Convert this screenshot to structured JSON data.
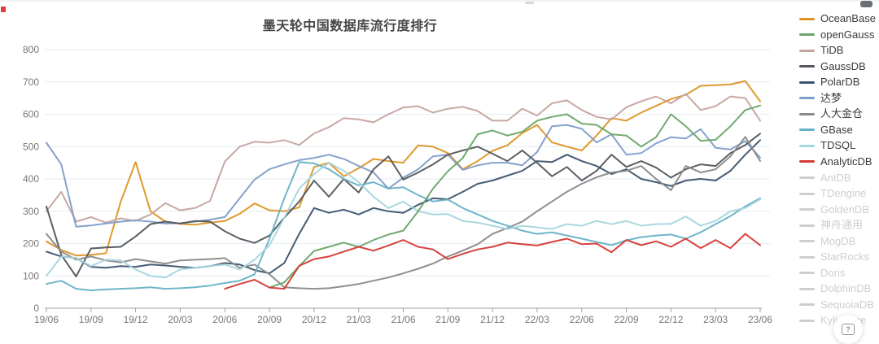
{
  "title": "墨天轮中国数据库流行度排行",
  "help_button": {
    "glyph": "?"
  },
  "legend": {
    "active_text_color": "#3a3a3a",
    "inactive_color": "#cdced1",
    "items": [
      {
        "label": "OceanBase",
        "color": "#dd9322",
        "active": true
      },
      {
        "label": "openGauss",
        "color": "#69a567",
        "active": true
      },
      {
        "label": "TiDB",
        "color": "#c4a49e",
        "active": true
      },
      {
        "label": "GaussDB",
        "color": "#53575c",
        "active": true
      },
      {
        "label": "PolarDB",
        "color": "#3c536d",
        "active": true
      },
      {
        "label": "达梦",
        "color": "#7e9dc8",
        "active": true
      },
      {
        "label": "人大金仓",
        "color": "#898989",
        "active": true
      },
      {
        "label": "GBase",
        "color": "#67b1c7",
        "active": true
      },
      {
        "label": "TDSQL",
        "color": "#a5d5de",
        "active": true
      },
      {
        "label": "AnalyticDB",
        "color": "#d43833",
        "active": true
      },
      {
        "label": "AntDB",
        "color": "#cdced1",
        "active": false
      },
      {
        "label": "TDengine",
        "color": "#cdced1",
        "active": false
      },
      {
        "label": "GoldenDB",
        "color": "#cdced1",
        "active": false
      },
      {
        "label": "神舟通用",
        "color": "#cdced1",
        "active": false
      },
      {
        "label": "MogDB",
        "color": "#cdced1",
        "active": false
      },
      {
        "label": "StarRocks",
        "color": "#cdced1",
        "active": false
      },
      {
        "label": "Doris",
        "color": "#cdced1",
        "active": false
      },
      {
        "label": "DolphinDB",
        "color": "#cdced1",
        "active": false
      },
      {
        "label": "SequoiaDB",
        "color": "#cdced1",
        "active": false
      },
      {
        "label": "Kyligence",
        "color": "#cdced1",
        "active": false
      }
    ]
  },
  "chart_data": {
    "type": "line",
    "title": "墨天轮中国数据库流行度排行",
    "xlabel": "",
    "ylabel": "",
    "ylim": [
      0,
      800
    ],
    "y_ticks": [
      0,
      100,
      200,
      300,
      400,
      500,
      600,
      700,
      800
    ],
    "grid": "horizontal-only",
    "legend_position": "right",
    "x_tick_labels": [
      "19/06",
      "19/09",
      "19/12",
      "20/03",
      "20/06",
      "20/09",
      "20/12",
      "21/03",
      "21/06",
      "21/09",
      "21/12",
      "22/03",
      "22/06",
      "22/09",
      "22/12",
      "23/03",
      "23/06"
    ],
    "months_per_tick": 3,
    "total_points": 49,
    "axis_color": "#a0a0a0",
    "grid_color": "#e4ecf4",
    "tick_text_color": "#767676",
    "series": [
      {
        "name": "OceanBase",
        "color": "#dd9322",
        "start_index": 0,
        "values": [
          207,
          180,
          163,
          165,
          170,
          330,
          452,
          300,
          268,
          261,
          258,
          265,
          270,
          292,
          324,
          303,
          300,
          312,
          437,
          450,
          408,
          433,
          462,
          455,
          450,
          504,
          500,
          480,
          430,
          455,
          487,
          504,
          542,
          567,
          513,
          500,
          488,
          534,
          588,
          580,
          605,
          626,
          647,
          660,
          688,
          690,
          692,
          703,
          640
        ]
      },
      {
        "name": "TiDB",
        "color": "#c4a49e",
        "start_index": 0,
        "values": [
          300,
          360,
          268,
          282,
          265,
          278,
          270,
          290,
          325,
          303,
          310,
          332,
          454,
          500,
          515,
          512,
          520,
          505,
          541,
          560,
          588,
          584,
          575,
          600,
          621,
          625,
          605,
          617,
          623,
          610,
          580,
          580,
          617,
          596,
          634,
          643,
          613,
          592,
          584,
          622,
          640,
          655,
          634,
          663,
          613,
          625,
          655,
          650,
          580
        ]
      },
      {
        "name": "达梦",
        "color": "#7e9dc8",
        "start_index": 0,
        "values": [
          512,
          445,
          252,
          256,
          262,
          268,
          272,
          268,
          262,
          263,
          268,
          274,
          282,
          340,
          398,
          430,
          445,
          458,
          465,
          475,
          462,
          440,
          420,
          370,
          404,
          430,
          470,
          475,
          428,
          442,
          450,
          450,
          442,
          483,
          563,
          567,
          555,
          513,
          538,
          475,
          480,
          510,
          529,
          525,
          554,
          496,
          491,
          517,
          466
        ]
      },
      {
        "name": "GaussDB",
        "color": "#53575c",
        "start_index": 0,
        "values": [
          315,
          165,
          98,
          185,
          188,
          190,
          222,
          260,
          268,
          262,
          270,
          268,
          238,
          215,
          202,
          225,
          280,
          330,
          395,
          345,
          400,
          358,
          430,
          470,
          398,
          420,
          445,
          475,
          488,
          500,
          478,
          455,
          488,
          450,
          408,
          437,
          395,
          425,
          475,
          437,
          455,
          435,
          404,
          430,
          445,
          440,
          480,
          505,
          540
        ]
      },
      {
        "name": "PolarDB",
        "color": "#3c536d",
        "start_index": 0,
        "values": [
          175,
          160,
          155,
          128,
          125,
          130,
          128,
          135,
          132,
          128,
          125,
          130,
          140,
          135,
          118,
          108,
          140,
          230,
          310,
          295,
          305,
          290,
          310,
          300,
          295,
          320,
          340,
          337,
          360,
          385,
          395,
          410,
          425,
          455,
          452,
          475,
          455,
          440,
          415,
          430,
          400,
          390,
          378,
          395,
          400,
          395,
          425,
          475,
          520
        ]
      },
      {
        "name": "人大金仓",
        "color": "#898989",
        "start_index": 0,
        "values": [
          230,
          175,
          150,
          160,
          148,
          142,
          152,
          145,
          138,
          148,
          150,
          152,
          155,
          125,
          135,
          105,
          65,
          62,
          60,
          62,
          68,
          75,
          85,
          95,
          108,
          122,
          138,
          160,
          178,
          198,
          230,
          248,
          268,
          300,
          330,
          360,
          385,
          405,
          420,
          425,
          440,
          400,
          365,
          440,
          420,
          430,
          470,
          530,
          455
        ]
      },
      {
        "name": "GBase",
        "color": "#67b1c7",
        "start_index": 0,
        "values": [
          75,
          85,
          60,
          55,
          58,
          60,
          62,
          65,
          60,
          62,
          65,
          70,
          78,
          85,
          105,
          215,
          340,
          452,
          448,
          430,
          400,
          380,
          390,
          370,
          374,
          350,
          330,
          336,
          310,
          290,
          270,
          255,
          240,
          230,
          235,
          225,
          215,
          205,
          195,
          210,
          220,
          225,
          228,
          215,
          235,
          260,
          285,
          315,
          340
        ]
      },
      {
        "name": "TDSQL",
        "color": "#a5d5de",
        "start_index": 0,
        "values": [
          100,
          160,
          155,
          130,
          150,
          148,
          120,
          100,
          95,
          120,
          125,
          130,
          135,
          120,
          150,
          195,
          280,
          370,
          415,
          450,
          425,
          390,
          345,
          310,
          330,
          300,
          290,
          291,
          270,
          265,
          255,
          245,
          255,
          250,
          245,
          260,
          255,
          270,
          260,
          270,
          255,
          260,
          261,
          284,
          255,
          270,
          300,
          310,
          337
        ]
      },
      {
        "name": "openGauss",
        "color": "#69a567",
        "start_index": 15,
        "values": [
          64,
          80,
          130,
          177,
          190,
          203,
          190,
          211,
          228,
          240,
          300,
          370,
          424,
          465,
          538,
          550,
          534,
          546,
          580,
          592,
          600,
          571,
          567,
          538,
          534,
          500,
          529,
          600,
          563,
          518,
          521,
          563,
          613,
          627
        ]
      },
      {
        "name": "AnalyticDB",
        "color": "#d43833",
        "start_index": 12,
        "values": [
          60,
          75,
          88,
          64,
          60,
          131,
          152,
          160,
          175,
          190,
          178,
          194,
          211,
          190,
          182,
          152,
          168,
          182,
          190,
          203,
          198,
          194,
          205,
          215,
          198,
          200,
          173,
          211,
          195,
          207,
          190,
          215,
          186,
          211,
          186,
          230,
          195
        ]
      }
    ]
  }
}
